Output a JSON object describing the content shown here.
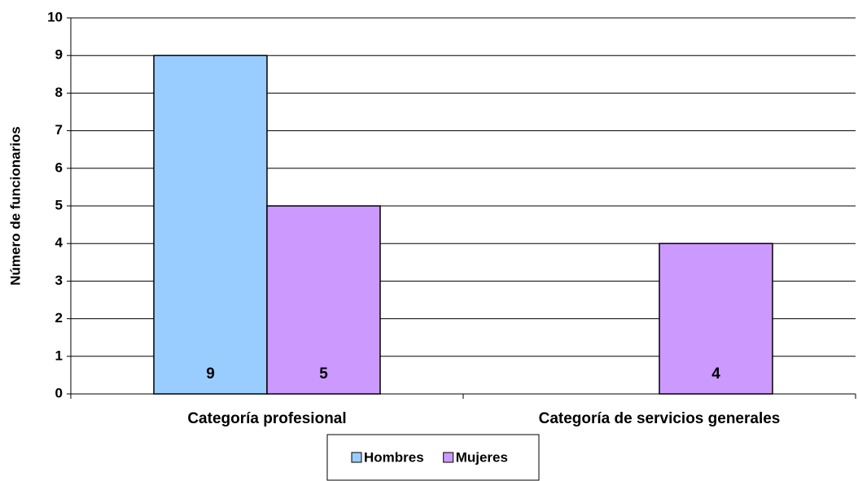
{
  "chart_data": {
    "type": "bar",
    "y_label": "Número de funcionarios",
    "categories": [
      "Categoría profesional",
      "Categoría de servicios generales"
    ],
    "series": [
      {
        "name": "Hombres",
        "color": "#99ccff",
        "values": [
          9,
          null
        ]
      },
      {
        "name": "Mujeres",
        "color": "#cc99ff",
        "values": [
          5,
          4
        ]
      }
    ],
    "ylim": [
      0,
      10
    ],
    "yticks": [
      0,
      1,
      2,
      3,
      4,
      5,
      6,
      7,
      8,
      9,
      10
    ],
    "grid": true,
    "legend": "bottom"
  }
}
